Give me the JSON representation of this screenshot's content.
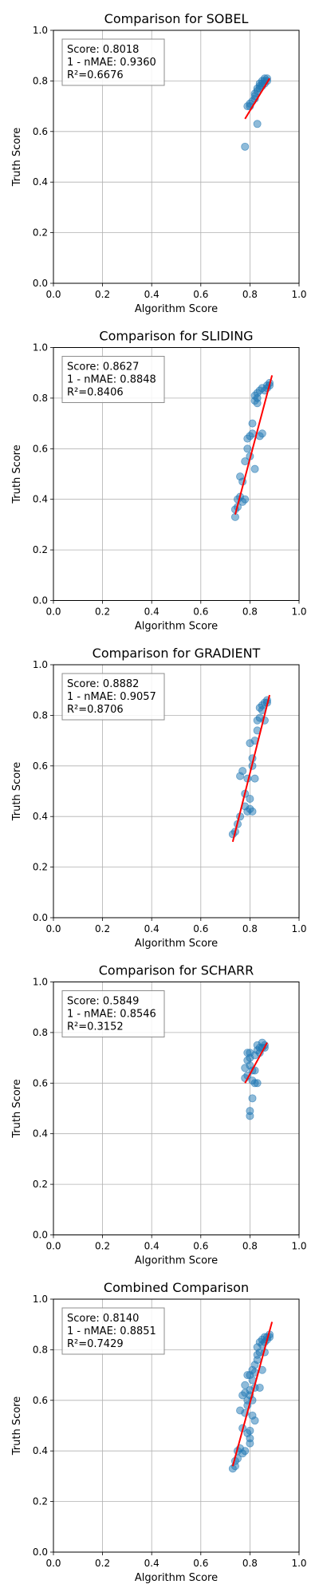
{
  "chart_data": [
    {
      "type": "scatter",
      "title": "Comparison for SOBEL",
      "xlabel": "Algorithm Score",
      "ylabel": "Truth Score",
      "xlim": [
        0,
        1
      ],
      "ylim": [
        0,
        1
      ],
      "xticks": [
        "0.0",
        "0.2",
        "0.4",
        "0.6",
        "0.8",
        "1.0"
      ],
      "yticks": [
        "0.0",
        "0.2",
        "0.4",
        "0.6",
        "0.8",
        "1.0"
      ],
      "grid": true,
      "colors": {
        "points": "#1f77b4",
        "fit": "#ff0000"
      },
      "stats": [
        "Score: 0.8018",
        "1 - nMAE: 0.9360",
        "R²=0.6676"
      ],
      "fit": [
        [
          0.78,
          0.65
        ],
        [
          0.88,
          0.81
        ]
      ],
      "x": [
        0.78,
        0.79,
        0.8,
        0.8,
        0.81,
        0.82,
        0.82,
        0.83,
        0.83,
        0.84,
        0.84,
        0.85,
        0.85,
        0.86,
        0.86,
        0.87,
        0.87,
        0.83,
        0.84,
        0.85,
        0.86,
        0.82
      ],
      "y": [
        0.54,
        0.7,
        0.7,
        0.71,
        0.72,
        0.73,
        0.74,
        0.76,
        0.77,
        0.78,
        0.79,
        0.79,
        0.8,
        0.8,
        0.81,
        0.8,
        0.81,
        0.63,
        0.77,
        0.78,
        0.79,
        0.75
      ]
    },
    {
      "type": "scatter",
      "title": "Comparison for SLIDING",
      "xlabel": "Algorithm Score",
      "ylabel": "Truth Score",
      "xlim": [
        0,
        1
      ],
      "ylim": [
        0,
        1
      ],
      "xticks": [
        "0.0",
        "0.2",
        "0.4",
        "0.6",
        "0.8",
        "1.0"
      ],
      "yticks": [
        "0.0",
        "0.2",
        "0.4",
        "0.6",
        "0.8",
        "1.0"
      ],
      "grid": true,
      "colors": {
        "points": "#1f77b4",
        "fit": "#ff0000"
      },
      "stats": [
        "Score: 0.8627",
        "1 - nMAE: 0.8848",
        "R²=0.8406"
      ],
      "fit": [
        [
          0.74,
          0.34
        ],
        [
          0.89,
          0.89
        ]
      ],
      "x": [
        0.74,
        0.74,
        0.75,
        0.75,
        0.76,
        0.76,
        0.77,
        0.77,
        0.78,
        0.78,
        0.79,
        0.79,
        0.8,
        0.8,
        0.81,
        0.81,
        0.82,
        0.82,
        0.83,
        0.83,
        0.84,
        0.84,
        0.85,
        0.85,
        0.86,
        0.87,
        0.87,
        0.88,
        0.88,
        0.83,
        0.82
      ],
      "y": [
        0.33,
        0.36,
        0.37,
        0.4,
        0.41,
        0.49,
        0.47,
        0.39,
        0.4,
        0.55,
        0.6,
        0.64,
        0.65,
        0.57,
        0.7,
        0.66,
        0.52,
        0.79,
        0.8,
        0.82,
        0.83,
        0.65,
        0.66,
        0.84,
        0.83,
        0.85,
        0.84,
        0.86,
        0.85,
        0.78,
        0.81
      ]
    },
    {
      "type": "scatter",
      "title": "Comparison for GRADIENT",
      "xlabel": "Algorithm Score",
      "ylabel": "Truth Score",
      "xlim": [
        0,
        1
      ],
      "ylim": [
        0,
        1
      ],
      "xticks": [
        "0.0",
        "0.2",
        "0.4",
        "0.6",
        "0.8",
        "1.0"
      ],
      "yticks": [
        "0.0",
        "0.2",
        "0.4",
        "0.6",
        "0.8",
        "1.0"
      ],
      "grid": true,
      "colors": {
        "points": "#1f77b4",
        "fit": "#ff0000"
      },
      "stats": [
        "Score: 0.8882",
        "1 - nMAE: 0.9057",
        "R²=0.8706"
      ],
      "fit": [
        [
          0.73,
          0.3
        ],
        [
          0.88,
          0.88
        ]
      ],
      "x": [
        0.73,
        0.74,
        0.75,
        0.76,
        0.76,
        0.77,
        0.78,
        0.78,
        0.79,
        0.79,
        0.8,
        0.8,
        0.81,
        0.81,
        0.82,
        0.82,
        0.83,
        0.83,
        0.84,
        0.84,
        0.85,
        0.85,
        0.86,
        0.86,
        0.87,
        0.87,
        0.8,
        0.81
      ],
      "y": [
        0.33,
        0.34,
        0.37,
        0.4,
        0.56,
        0.58,
        0.49,
        0.44,
        0.42,
        0.55,
        0.47,
        0.69,
        0.6,
        0.42,
        0.7,
        0.55,
        0.74,
        0.78,
        0.79,
        0.83,
        0.84,
        0.82,
        0.85,
        0.78,
        0.86,
        0.85,
        0.43,
        0.63
      ]
    },
    {
      "type": "scatter",
      "title": "Comparison for SCHARR",
      "xlabel": "Algorithm Score",
      "ylabel": "Truth Score",
      "xlim": [
        0,
        1
      ],
      "ylim": [
        0,
        1
      ],
      "xticks": [
        "0.0",
        "0.2",
        "0.4",
        "0.6",
        "0.8",
        "1.0"
      ],
      "yticks": [
        "0.0",
        "0.2",
        "0.4",
        "0.6",
        "0.8",
        "1.0"
      ],
      "grid": true,
      "colors": {
        "points": "#1f77b4",
        "fit": "#ff0000"
      },
      "stats": [
        "Score: 0.5849",
        "1 - nMAE: 0.8546",
        "R²=0.3152"
      ],
      "fit": [
        [
          0.78,
          0.6
        ],
        [
          0.87,
          0.76
        ]
      ],
      "x": [
        0.78,
        0.78,
        0.79,
        0.79,
        0.8,
        0.8,
        0.8,
        0.81,
        0.81,
        0.82,
        0.82,
        0.82,
        0.83,
        0.83,
        0.84,
        0.84,
        0.85,
        0.85,
        0.86,
        0.86,
        0.79,
        0.8,
        0.83,
        0.81,
        0.8
      ],
      "y": [
        0.62,
        0.66,
        0.69,
        0.72,
        0.7,
        0.47,
        0.49,
        0.54,
        0.61,
        0.6,
        0.65,
        0.71,
        0.73,
        0.75,
        0.72,
        0.74,
        0.74,
        0.76,
        0.75,
        0.74,
        0.63,
        0.67,
        0.6,
        0.65,
        0.72
      ]
    },
    {
      "type": "scatter",
      "title": "Combined Comparison",
      "xlabel": "Algorithm Score",
      "ylabel": "Truth Score",
      "xlim": [
        0,
        1
      ],
      "ylim": [
        0,
        1
      ],
      "xticks": [
        "0.0",
        "0.2",
        "0.4",
        "0.6",
        "0.8",
        "1.0"
      ],
      "yticks": [
        "0.0",
        "0.2",
        "0.4",
        "0.6",
        "0.8",
        "1.0"
      ],
      "grid": true,
      "colors": {
        "points": "#1f77b4",
        "fit": "#ff0000"
      },
      "stats": [
        "Score: 0.8140",
        "1 - nMAE: 0.8851",
        "R²=0.7429"
      ],
      "fit": [
        [
          0.73,
          0.34
        ],
        [
          0.89,
          0.91
        ]
      ],
      "x": [
        0.73,
        0.74,
        0.74,
        0.75,
        0.75,
        0.76,
        0.76,
        0.77,
        0.77,
        0.77,
        0.78,
        0.78,
        0.78,
        0.79,
        0.79,
        0.79,
        0.8,
        0.8,
        0.8,
        0.8,
        0.81,
        0.81,
        0.81,
        0.82,
        0.82,
        0.82,
        0.83,
        0.83,
        0.83,
        0.84,
        0.84,
        0.84,
        0.85,
        0.85,
        0.85,
        0.86,
        0.86,
        0.86,
        0.87,
        0.87,
        0.88,
        0.88,
        0.8,
        0.81,
        0.79,
        0.82,
        0.78,
        0.8
      ],
      "y": [
        0.33,
        0.34,
        0.36,
        0.37,
        0.4,
        0.41,
        0.56,
        0.49,
        0.39,
        0.62,
        0.4,
        0.55,
        0.66,
        0.47,
        0.6,
        0.7,
        0.64,
        0.7,
        0.48,
        0.43,
        0.6,
        0.72,
        0.54,
        0.65,
        0.74,
        0.52,
        0.76,
        0.78,
        0.81,
        0.79,
        0.83,
        0.65,
        0.82,
        0.84,
        0.72,
        0.85,
        0.83,
        0.79,
        0.85,
        0.84,
        0.86,
        0.85,
        0.45,
        0.68,
        0.58,
        0.71,
        0.63,
        0.62
      ]
    }
  ]
}
